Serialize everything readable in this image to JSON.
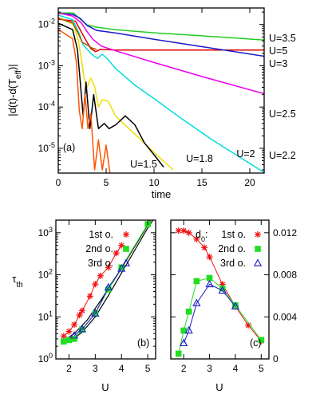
{
  "chart_data": [
    {
      "id": "a",
      "type": "line",
      "panel_label": "(a)",
      "xlabel": "time",
      "ylabel": "|d(t)-d(T_eff)|",
      "xlim": [
        0,
        21.5
      ],
      "ylim_log10": [
        -5.6,
        -1.6
      ],
      "y_log_scale": true,
      "x_ticks": [
        "0",
        "5",
        "10",
        "15",
        "20"
      ],
      "x_tick_values": [
        0,
        5,
        10,
        15,
        20
      ],
      "y_ticks": [
        {
          "exp": -2,
          "base": "10"
        },
        {
          "exp": -3,
          "base": "10"
        },
        {
          "exp": -4,
          "base": "10"
        },
        {
          "exp": -5,
          "base": "10"
        }
      ],
      "grid": false,
      "series": [
        {
          "name": "U=3.5",
          "color": "#22cc22",
          "points": [
            [
              0,
              0.019
            ],
            [
              1,
              0.019
            ],
            [
              1.6,
              0.019
            ],
            [
              2.2,
              0.014
            ],
            [
              3,
              0.0098
            ],
            [
              4,
              0.0086
            ],
            [
              6,
              0.0075
            ],
            [
              10,
              0.0063
            ],
            [
              14,
              0.0055
            ],
            [
              18,
              0.0048
            ],
            [
              21.5,
              0.0042
            ]
          ]
        },
        {
          "name": "U=5",
          "color": "#dd0000",
          "points": [
            [
              0,
              0.0135
            ],
            [
              1.8,
              0.012
            ],
            [
              2.8,
              0.0045
            ],
            [
              3.4,
              0.0026
            ],
            [
              3.9,
              0.0022
            ],
            [
              4.4,
              0.0025
            ],
            [
              6,
              0.0024
            ],
            [
              10,
              0.0024
            ],
            [
              21.5,
              0.0024
            ]
          ]
        },
        {
          "name": "U=3",
          "color": "#1a1acc",
          "points": [
            [
              0,
              0.0185
            ],
            [
              1.5,
              0.0175
            ],
            [
              2.3,
              0.014
            ],
            [
              3,
              0.0095
            ],
            [
              4,
              0.0072
            ],
            [
              6,
              0.0062
            ],
            [
              10,
              0.0044
            ],
            [
              15,
              0.0029
            ],
            [
              21.5,
              0.0017
            ]
          ]
        },
        {
          "name": "U=2.5",
          "color": "#ee00ee",
          "points": [
            [
              0,
              0.019
            ],
            [
              1.5,
              0.016
            ],
            [
              2.4,
              0.011
            ],
            [
              3,
              0.0068
            ],
            [
              3.6,
              0.0044
            ],
            [
              4.5,
              0.003
            ],
            [
              6,
              0.0023
            ],
            [
              10,
              0.0012
            ],
            [
              15,
              0.00055
            ],
            [
              21.5,
              0.00021
            ]
          ]
        },
        {
          "name": "U=2.2",
          "color": "#00dddd",
          "points": [
            [
              0,
              0.017
            ],
            [
              1.5,
              0.013
            ],
            [
              2.2,
              0.006
            ],
            [
              2.6,
              0.0032
            ],
            [
              3.1,
              0.0024
            ],
            [
              3.6,
              0.0018
            ],
            [
              4.1,
              0.0015
            ],
            [
              4.6,
              0.0019
            ],
            [
              5.1,
              0.0015
            ],
            [
              6,
              0.00085
            ],
            [
              8,
              0.00034
            ],
            [
              10,
              0.00016
            ],
            [
              13,
              5e-05
            ],
            [
              16,
              1.65e-05
            ],
            [
              21.5,
              2.6e-06
            ]
          ]
        },
        {
          "name": "U=2",
          "color": "#eedd00",
          "points": [
            [
              0,
              0.015
            ],
            [
              1.6,
              0.01
            ],
            [
              2.1,
              0.004
            ],
            [
              2.4,
              0.0015
            ],
            [
              2.7,
              0.0005
            ],
            [
              3,
              0.0003
            ],
            [
              3.4,
              0.0005
            ],
            [
              3.8,
              0.00031
            ],
            [
              4.2,
              0.0001
            ],
            [
              4.6,
              0.00015
            ],
            [
              5.2,
              0.00014
            ],
            [
              6,
              6e-05
            ],
            [
              8,
              2.2e-05
            ],
            [
              10,
              8e-06
            ],
            [
              12,
              3e-06
            ]
          ]
        },
        {
          "name": "U=1.8",
          "color": "#000000",
          "points": [
            [
              0,
              0.0108
            ],
            [
              1.5,
              0.0075
            ],
            [
              2,
              0.0025
            ],
            [
              2.3,
              0.0004
            ],
            [
              2.6,
              6e-05
            ],
            [
              2.9,
              0.0004
            ],
            [
              3.3,
              3e-05
            ],
            [
              3.7,
              0.0002
            ],
            [
              4.2,
              3e-05
            ],
            [
              4.8,
              4e-05
            ],
            [
              5.3,
              3e-05
            ],
            [
              6,
              3.7e-05
            ],
            [
              7,
              6.1e-05
            ],
            [
              8,
              3.7e-05
            ],
            [
              9,
              1.35e-05
            ],
            [
              10,
              7e-06
            ],
            [
              11,
              3.5e-06
            ]
          ]
        },
        {
          "name": "U=1.5",
          "color": "#ff5500",
          "points": [
            [
              0,
              0.0076
            ],
            [
              1.5,
              0.0045
            ],
            [
              1.9,
              0.0012
            ],
            [
              2.2,
              8e-05
            ],
            [
              2.5,
              3e-05
            ],
            [
              2.8,
              0.0002
            ],
            [
              3.1,
              3e-05
            ],
            [
              3.4,
              7e-05
            ],
            [
              3.8,
              3e-06
            ],
            [
              4.2,
              1.6e-05
            ],
            [
              4.6,
              3e-06
            ],
            [
              5,
              1.2e-05
            ],
            [
              5.4,
              2.5e-06
            ]
          ]
        },
        {
          "name": "",
          "color": "#aa5500",
          "points": [
            [
              0,
              0.0142
            ],
            [
              1.5,
              0.011
            ],
            [
              2.1,
              0.006
            ],
            [
              2.5,
              0.0037
            ],
            [
              3,
              0.0032
            ],
            [
              3.5,
              0.0027
            ],
            [
              4,
              0.0025
            ]
          ]
        }
      ],
      "labels": [
        "U=3.5",
        "U=5",
        "U=3",
        "U=2.5",
        "U=2.2",
        "U=2",
        "U=1.8",
        "U=1.5"
      ]
    },
    {
      "id": "b",
      "type": "scatter",
      "panel_label": "(b)",
      "xlabel": "U",
      "ylabel": "τth",
      "xlim": [
        1.5,
        5.3
      ],
      "ylim_log10": [
        0,
        3.3
      ],
      "y_log_scale": true,
      "x_ticks": [
        "2",
        "3",
        "4",
        "5"
      ],
      "x_tick_values": [
        2,
        3,
        4,
        5
      ],
      "y_ticks": [
        {
          "exp": 0,
          "base": "10"
        },
        {
          "exp": 1,
          "base": "10"
        },
        {
          "exp": 2,
          "base": "10"
        },
        {
          "exp": 3,
          "base": "10"
        }
      ],
      "legend": [
        "1st o.",
        "2nd o.",
        "3rd o."
      ],
      "series": [
        {
          "name": "1st o.",
          "marker": "star",
          "color": "#ee1111",
          "x": [
            1.8,
            2.0,
            2.2,
            2.4,
            2.5,
            2.8,
            3.0,
            3.2,
            3.5,
            3.8,
            4.0
          ],
          "y": [
            3.5,
            4.5,
            6.5,
            11,
            14,
            31,
            60,
            95,
            150,
            330,
            500
          ]
        },
        {
          "name": "2nd o.",
          "marker": "square",
          "color": "#22dd22",
          "x": [
            1.8,
            2.0,
            2.2,
            2.5,
            3.0,
            3.5,
            4.0,
            5.0
          ],
          "y": [
            2.6,
            2.8,
            3.0,
            5.0,
            12,
            45,
            150,
            1600
          ]
        },
        {
          "name": "3rd o.",
          "marker": "triangle",
          "color": "#1a1acc",
          "x": [
            2.2,
            2.5,
            3.0,
            3.5,
            4.0
          ],
          "y": [
            3.6,
            5.1,
            12,
            50,
            140
          ]
        }
      ],
      "fit_curves": [
        {
          "x": [
            1.75,
            2.2,
            2.7,
            3.2,
            3.7,
            4.2,
            4.7,
            5.2
          ],
          "y": [
            2.6,
            4.0,
            8.5,
            24,
            72,
            230,
            750,
            2500
          ]
        },
        {
          "x": [
            2.0,
            2.5,
            3.0,
            3.5,
            4.0,
            4.5,
            5.0,
            5.3
          ],
          "y": [
            2.5,
            4.3,
            10,
            32,
            110,
            380,
            1300,
            2500
          ]
        }
      ]
    },
    {
      "id": "c",
      "type": "line",
      "panel_label": "(c)",
      "xlabel": "U",
      "ylabel": "d0",
      "xlim": [
        1.5,
        5.3
      ],
      "ylim": [
        0,
        0.0132
      ],
      "y_ticks_right": [
        "0",
        "0.004",
        "0.008",
        "0.012"
      ],
      "y_tick_values": [
        0,
        0.004,
        0.008,
        0.012
      ],
      "x_ticks": [
        "2",
        "3",
        "4",
        "5"
      ],
      "x_tick_values": [
        2,
        3,
        4,
        5
      ],
      "legend_title": "d0:",
      "legend": [
        "1st o.",
        "2nd o.",
        "3rd o."
      ],
      "series": [
        {
          "name": "1st o.",
          "marker": "star",
          "color": "#ee1111",
          "x": [
            1.8,
            2.0,
            2.2,
            2.5,
            2.8,
            3.0,
            3.5,
            4.0,
            4.5,
            5.0
          ],
          "y": [
            0.0122,
            0.0122,
            0.012,
            0.0114,
            0.0106,
            0.0097,
            0.0071,
            0.005,
            0.0032,
            0.0017
          ]
        },
        {
          "name": "2nd o.",
          "marker": "square",
          "color": "#22dd22",
          "x": [
            1.8,
            2.0,
            2.2,
            2.5,
            3.0,
            3.5,
            4.0,
            5.0
          ],
          "y": [
            0.0005,
            0.0027,
            0.0045,
            0.0074,
            0.0077,
            0.0067,
            0.0051,
            0.0018
          ]
        },
        {
          "name": "3rd o.",
          "marker": "triangle",
          "color": "#1a1acc",
          "x": [
            2.0,
            2.2,
            2.5,
            3.0,
            3.5,
            4.0
          ],
          "y": [
            0.0015,
            0.0027,
            0.0053,
            0.0071,
            0.0065,
            0.005
          ]
        }
      ]
    }
  ]
}
